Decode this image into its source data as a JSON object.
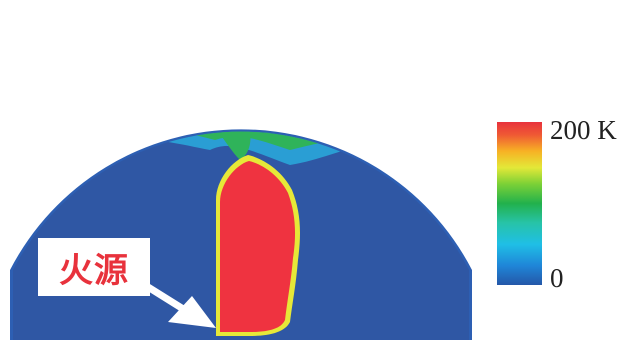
{
  "colorbar": {
    "max_label": "200 K",
    "min_label": "0",
    "colors": [
      "#2457a8",
      "#1f86d8",
      "#1fbfe6",
      "#22b14c",
      "#5cc83a",
      "#d6e83a",
      "#f5b923",
      "#ee4a36",
      "#e8323c"
    ]
  },
  "annotation": {
    "fire_source_label": "火源",
    "label_color": "#e8323c"
  },
  "field_colors": {
    "background": "#2f57a4",
    "rim": "#2d5fb3",
    "hot": "#ef3340"
  }
}
